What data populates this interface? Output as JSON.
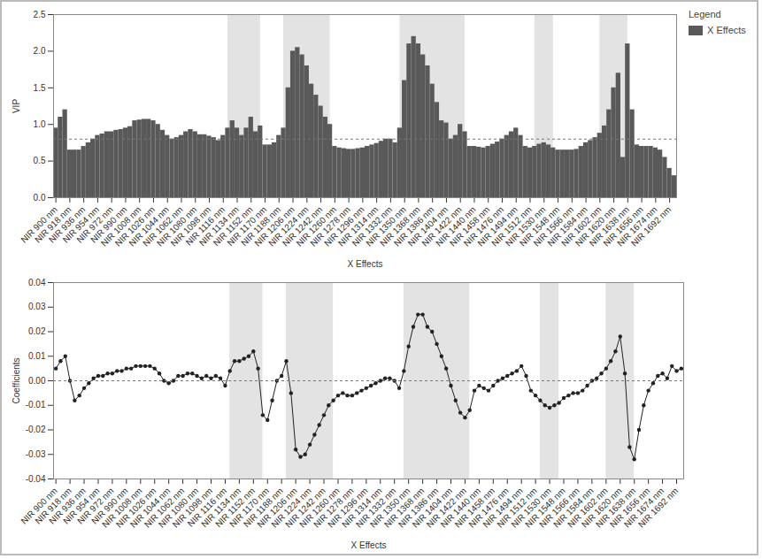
{
  "chart_data": [
    {
      "type": "bar",
      "x_label": "X Effects",
      "y_label": "VIP",
      "legend": "right",
      "legend_title": "Legend",
      "x": [
        900,
        906,
        912,
        918,
        924,
        930,
        936,
        942,
        948,
        954,
        960,
        966,
        972,
        978,
        984,
        990,
        996,
        1002,
        1008,
        1014,
        1020,
        1026,
        1032,
        1038,
        1044,
        1050,
        1056,
        1062,
        1068,
        1074,
        1080,
        1086,
        1092,
        1098,
        1104,
        1110,
        1116,
        1122,
        1128,
        1134,
        1140,
        1146,
        1152,
        1158,
        1164,
        1170,
        1176,
        1182,
        1188,
        1194,
        1200,
        1206,
        1212,
        1218,
        1224,
        1230,
        1236,
        1242,
        1248,
        1254,
        1260,
        1266,
        1272,
        1278,
        1284,
        1290,
        1296,
        1302,
        1308,
        1314,
        1320,
        1326,
        1332,
        1338,
        1344,
        1350,
        1356,
        1362,
        1368,
        1374,
        1380,
        1386,
        1392,
        1398,
        1404,
        1410,
        1416,
        1422,
        1428,
        1434,
        1440,
        1446,
        1452,
        1458,
        1464,
        1470,
        1476,
        1482,
        1488,
        1494,
        1500,
        1506,
        1512,
        1518,
        1524,
        1530,
        1536,
        1542,
        1548,
        1554,
        1560,
        1566,
        1572,
        1578,
        1584,
        1590,
        1596,
        1602,
        1608,
        1614,
        1620,
        1626,
        1632,
        1638,
        1644,
        1650,
        1656,
        1662,
        1668,
        1674,
        1680,
        1686,
        1692,
        1698
      ],
      "series": [
        {
          "name": "X Effects",
          "color": "#595959",
          "values": [
            0.95,
            1.1,
            1.2,
            0.65,
            0.65,
            0.65,
            0.7,
            0.75,
            0.8,
            0.85,
            0.87,
            0.9,
            0.9,
            0.92,
            0.93,
            0.95,
            0.97,
            1.05,
            1.06,
            1.07,
            1.07,
            1.05,
            1.0,
            0.92,
            0.85,
            0.8,
            0.82,
            0.85,
            0.9,
            0.93,
            0.9,
            0.86,
            0.86,
            0.84,
            0.82,
            0.78,
            0.85,
            0.95,
            1.05,
            0.95,
            0.85,
            0.95,
            1.1,
            0.9,
            0.98,
            0.72,
            0.72,
            0.75,
            0.85,
            0.95,
            1.5,
            2.0,
            2.05,
            1.95,
            1.8,
            1.55,
            1.4,
            1.25,
            1.1,
            1.0,
            0.7,
            0.68,
            0.67,
            0.66,
            0.66,
            0.67,
            0.68,
            0.7,
            0.72,
            0.74,
            0.77,
            0.8,
            0.8,
            0.75,
            0.95,
            1.6,
            2.1,
            2.2,
            2.1,
            1.95,
            1.8,
            1.55,
            1.3,
            1.05,
            1.02,
            0.8,
            0.85,
            1.0,
            0.9,
            0.7,
            0.7,
            0.69,
            0.68,
            0.7,
            0.73,
            0.76,
            0.8,
            0.85,
            0.9,
            0.95,
            0.85,
            0.7,
            0.68,
            0.7,
            0.73,
            0.75,
            0.72,
            0.68,
            0.65,
            0.65,
            0.65,
            0.65,
            0.66,
            0.7,
            0.75,
            0.78,
            0.82,
            0.88,
            0.98,
            1.2,
            1.5,
            1.7,
            0.55,
            2.1,
            1.2,
            0.72,
            0.7,
            0.7,
            0.7,
            0.68,
            0.65,
            0.55,
            0.4,
            0.3
          ]
        }
      ],
      "xlim": [
        897,
        1701
      ],
      "ylim": [
        0,
        2.5
      ],
      "xticks": [
        {
          "value": 900,
          "label": "NIR 900 nm"
        },
        {
          "value": 918,
          "label": "NIR 918 nm"
        },
        {
          "value": 936,
          "label": "NIR 936 nm"
        },
        {
          "value": 954,
          "label": "NIR 954 nm"
        },
        {
          "value": 972,
          "label": "NIR 972 nm"
        },
        {
          "value": 990,
          "label": "NIR 990 nm"
        },
        {
          "value": 1008,
          "label": "NIR 1008 nm"
        },
        {
          "value": 1026,
          "label": "NIR 1026 nm"
        },
        {
          "value": 1044,
          "label": "NIR 1044 nm"
        },
        {
          "value": 1062,
          "label": "NIR 1062 nm"
        },
        {
          "value": 1080,
          "label": "NIR 1080 nm"
        },
        {
          "value": 1098,
          "label": "NIR 1098 nm"
        },
        {
          "value": 1116,
          "label": "NIR 1116 nm"
        },
        {
          "value": 1134,
          "label": "NIR 1134 nm"
        },
        {
          "value": 1152,
          "label": "NIR 1152 nm"
        },
        {
          "value": 1170,
          "label": "NIR 1170 nm"
        },
        {
          "value": 1188,
          "label": "NIR 1188 nm"
        },
        {
          "value": 1206,
          "label": "NIR 1206 nm"
        },
        {
          "value": 1224,
          "label": "NIR 1224 nm"
        },
        {
          "value": 1242,
          "label": "NIR 1242 nm"
        },
        {
          "value": 1260,
          "label": "NIR 1260 nm"
        },
        {
          "value": 1278,
          "label": "NIR 1278 nm"
        },
        {
          "value": 1296,
          "label": "NIR 1296 nm"
        },
        {
          "value": 1314,
          "label": "NIR 1314 nm"
        },
        {
          "value": 1332,
          "label": "NIR 1332 nm"
        },
        {
          "value": 1350,
          "label": "NIR 1350 nm"
        },
        {
          "value": 1368,
          "label": "NIR 1368 nm"
        },
        {
          "value": 1386,
          "label": "NIR 1386 nm"
        },
        {
          "value": 1404,
          "label": "NIR 1404 nm"
        },
        {
          "value": 1422,
          "label": "NIR 1422 nm"
        },
        {
          "value": 1440,
          "label": "NIR 1440 nm"
        },
        {
          "value": 1458,
          "label": "NIR 1458 nm"
        },
        {
          "value": 1476,
          "label": "NIR 1476 nm"
        },
        {
          "value": 1494,
          "label": "NIR 1494 nm"
        },
        {
          "value": 1512,
          "label": "NIR 1512 nm"
        },
        {
          "value": 1530,
          "label": "NIR 1530 nm"
        },
        {
          "value": 1548,
          "label": "NIR 1548 nm"
        },
        {
          "value": 1566,
          "label": "NIR 1566 nm"
        },
        {
          "value": 1584,
          "label": "NIR 1584 nm"
        },
        {
          "value": 1602,
          "label": "NIR 1602 nm"
        },
        {
          "value": 1620,
          "label": "NIR 1620 nm"
        },
        {
          "value": 1638,
          "label": "NIR 1638 nm"
        },
        {
          "value": 1656,
          "label": "NIR 1656 nm"
        },
        {
          "value": 1674,
          "label": "NIR 1674 nm"
        },
        {
          "value": 1692,
          "label": "NIR 1692 nm"
        }
      ],
      "yticks": [
        {
          "value": 0,
          "label": "0.0"
        },
        {
          "value": 0.5,
          "label": "0.5"
        },
        {
          "value": 1,
          "label": "1.0"
        },
        {
          "value": 1.5,
          "label": "1.5"
        },
        {
          "value": 2,
          "label": "2.0"
        },
        {
          "value": 2.5,
          "label": "2.5"
        }
      ],
      "shaded_ranges": [
        [
          1122,
          1164
        ],
        [
          1194,
          1254
        ],
        [
          1344,
          1428
        ],
        [
          1518,
          1542
        ],
        [
          1602,
          1638
        ]
      ],
      "reference_line": 0.8
    },
    {
      "type": "line",
      "x_label": "X Effects",
      "y_label": "Coefficients",
      "marker": "circle",
      "line_style": "solid",
      "color": "#222222",
      "x": [
        900,
        906,
        912,
        918,
        924,
        930,
        936,
        942,
        948,
        954,
        960,
        966,
        972,
        978,
        984,
        990,
        996,
        1002,
        1008,
        1014,
        1020,
        1026,
        1032,
        1038,
        1044,
        1050,
        1056,
        1062,
        1068,
        1074,
        1080,
        1086,
        1092,
        1098,
        1104,
        1110,
        1116,
        1122,
        1128,
        1134,
        1140,
        1146,
        1152,
        1158,
        1164,
        1170,
        1176,
        1182,
        1188,
        1194,
        1200,
        1206,
        1212,
        1218,
        1224,
        1230,
        1236,
        1242,
        1248,
        1254,
        1260,
        1266,
        1272,
        1278,
        1284,
        1290,
        1296,
        1302,
        1308,
        1314,
        1320,
        1326,
        1332,
        1338,
        1344,
        1350,
        1356,
        1362,
        1368,
        1374,
        1380,
        1386,
        1392,
        1398,
        1404,
        1410,
        1416,
        1422,
        1428,
        1434,
        1440,
        1446,
        1452,
        1458,
        1464,
        1470,
        1476,
        1482,
        1488,
        1494,
        1500,
        1506,
        1512,
        1518,
        1524,
        1530,
        1536,
        1542,
        1548,
        1554,
        1560,
        1566,
        1572,
        1578,
        1584,
        1590,
        1596,
        1602,
        1608,
        1614,
        1620,
        1626,
        1632,
        1638,
        1644,
        1650,
        1656,
        1662,
        1668,
        1674,
        1680,
        1686,
        1692,
        1698
      ],
      "values": [
        0.005,
        0.008,
        0.01,
        0.0,
        -0.008,
        -0.006,
        -0.003,
        -0.001,
        0.001,
        0.002,
        0.002,
        0.003,
        0.003,
        0.004,
        0.004,
        0.005,
        0.005,
        0.006,
        0.006,
        0.006,
        0.006,
        0.005,
        0.003,
        0.0,
        -0.001,
        0.0,
        0.002,
        0.002,
        0.003,
        0.003,
        0.002,
        0.001,
        0.002,
        0.001,
        0.002,
        0.001,
        -0.002,
        0.004,
        0.008,
        0.008,
        0.009,
        0.01,
        0.012,
        0.005,
        -0.014,
        -0.016,
        -0.008,
        0.0,
        0.002,
        0.008,
        -0.005,
        -0.028,
        -0.031,
        -0.03,
        -0.026,
        -0.022,
        -0.018,
        -0.014,
        -0.01,
        -0.008,
        -0.006,
        -0.005,
        -0.006,
        -0.006,
        -0.005,
        -0.004,
        -0.003,
        -0.002,
        -0.001,
        0.0,
        0.001,
        0.001,
        0.0,
        -0.003,
        0.004,
        0.014,
        0.022,
        0.027,
        0.027,
        0.022,
        0.02,
        0.015,
        0.01,
        0.005,
        -0.002,
        -0.008,
        -0.013,
        -0.015,
        -0.012,
        -0.004,
        -0.002,
        -0.003,
        -0.004,
        -0.002,
        0.0,
        0.001,
        0.002,
        0.003,
        0.004,
        0.006,
        0.002,
        -0.004,
        -0.006,
        -0.008,
        -0.01,
        -0.011,
        -0.01,
        -0.009,
        -0.007,
        -0.006,
        -0.005,
        -0.005,
        -0.004,
        -0.002,
        0.0,
        0.001,
        0.003,
        0.005,
        0.008,
        0.012,
        0.018,
        0.003,
        -0.027,
        -0.032,
        -0.02,
        -0.01,
        -0.004,
        -0.001,
        0.002,
        0.003,
        0.001,
        0.006,
        0.004,
        0.005
      ],
      "xlim": [
        897,
        1701
      ],
      "ylim": [
        -0.04,
        0.04
      ],
      "xticks": [
        {
          "value": 900,
          "label": "NIR 900 nm"
        },
        {
          "value": 918,
          "label": "NIR 918 nm"
        },
        {
          "value": 936,
          "label": "NIR 936 nm"
        },
        {
          "value": 954,
          "label": "NIR 954 nm"
        },
        {
          "value": 972,
          "label": "NIR 972 nm"
        },
        {
          "value": 990,
          "label": "NIR 990 nm"
        },
        {
          "value": 1008,
          "label": "NIR 1008 nm"
        },
        {
          "value": 1026,
          "label": "NIR 1026 nm"
        },
        {
          "value": 1044,
          "label": "NIR 1044 nm"
        },
        {
          "value": 1062,
          "label": "NIR 1062 nm"
        },
        {
          "value": 1080,
          "label": "NIR 1080 nm"
        },
        {
          "value": 1098,
          "label": "NIR 1098 nm"
        },
        {
          "value": 1116,
          "label": "NIR 1116 nm"
        },
        {
          "value": 1134,
          "label": "NIR 1134 nm"
        },
        {
          "value": 1152,
          "label": "NIR 1152 nm"
        },
        {
          "value": 1170,
          "label": "NIR 1170 nm"
        },
        {
          "value": 1188,
          "label": "NIR 1188 nm"
        },
        {
          "value": 1206,
          "label": "NIR 1206 nm"
        },
        {
          "value": 1224,
          "label": "NIR 1224 nm"
        },
        {
          "value": 1242,
          "label": "NIR 1242 nm"
        },
        {
          "value": 1260,
          "label": "NIR 1260 nm"
        },
        {
          "value": 1278,
          "label": "NIR 1278 nm"
        },
        {
          "value": 1296,
          "label": "NIR 1296 nm"
        },
        {
          "value": 1314,
          "label": "NIR 1314 nm"
        },
        {
          "value": 1332,
          "label": "NIR 1332 nm"
        },
        {
          "value": 1350,
          "label": "NIR 1350 nm"
        },
        {
          "value": 1368,
          "label": "NIR 1368 nm"
        },
        {
          "value": 1386,
          "label": "NIR 1386 nm"
        },
        {
          "value": 1404,
          "label": "NIR 1404 nm"
        },
        {
          "value": 1422,
          "label": "NIR 1422 nm"
        },
        {
          "value": 1440,
          "label": "NIR 1440 nm"
        },
        {
          "value": 1458,
          "label": "NIR 1458 nm"
        },
        {
          "value": 1476,
          "label": "NIR 1476 nm"
        },
        {
          "value": 1494,
          "label": "NIR 1494 nm"
        },
        {
          "value": 1512,
          "label": "NIR 1512 nm"
        },
        {
          "value": 1530,
          "label": "NIR 1530 nm"
        },
        {
          "value": 1548,
          "label": "NIR 1548 nm"
        },
        {
          "value": 1566,
          "label": "NIR 1566 nm"
        },
        {
          "value": 1584,
          "label": "NIR 1584 nm"
        },
        {
          "value": 1602,
          "label": "NIR 1602 nm"
        },
        {
          "value": 1620,
          "label": "NIR 1620 nm"
        },
        {
          "value": 1638,
          "label": "NIR 1638 nm"
        },
        {
          "value": 1656,
          "label": "NIR 1656 nm"
        },
        {
          "value": 1674,
          "label": "NIR 1674 nm"
        },
        {
          "value": 1692,
          "label": "NIR 1692 nm"
        }
      ],
      "yticks": [
        {
          "value": -0.04,
          "label": "-0.04"
        },
        {
          "value": -0.03,
          "label": "-0.03"
        },
        {
          "value": -0.02,
          "label": "-0.02"
        },
        {
          "value": -0.01,
          "label": "-0.01"
        },
        {
          "value": 0,
          "label": "0.00"
        },
        {
          "value": 0.01,
          "label": "0.01"
        },
        {
          "value": 0.02,
          "label": "0.02"
        },
        {
          "value": 0.03,
          "label": "0.03"
        },
        {
          "value": 0.04,
          "label": "0.04"
        }
      ],
      "shaded_ranges": [
        [
          1122,
          1164
        ],
        [
          1194,
          1254
        ],
        [
          1344,
          1428
        ],
        [
          1518,
          1542
        ],
        [
          1602,
          1638
        ]
      ],
      "reference_line": 0
    }
  ]
}
